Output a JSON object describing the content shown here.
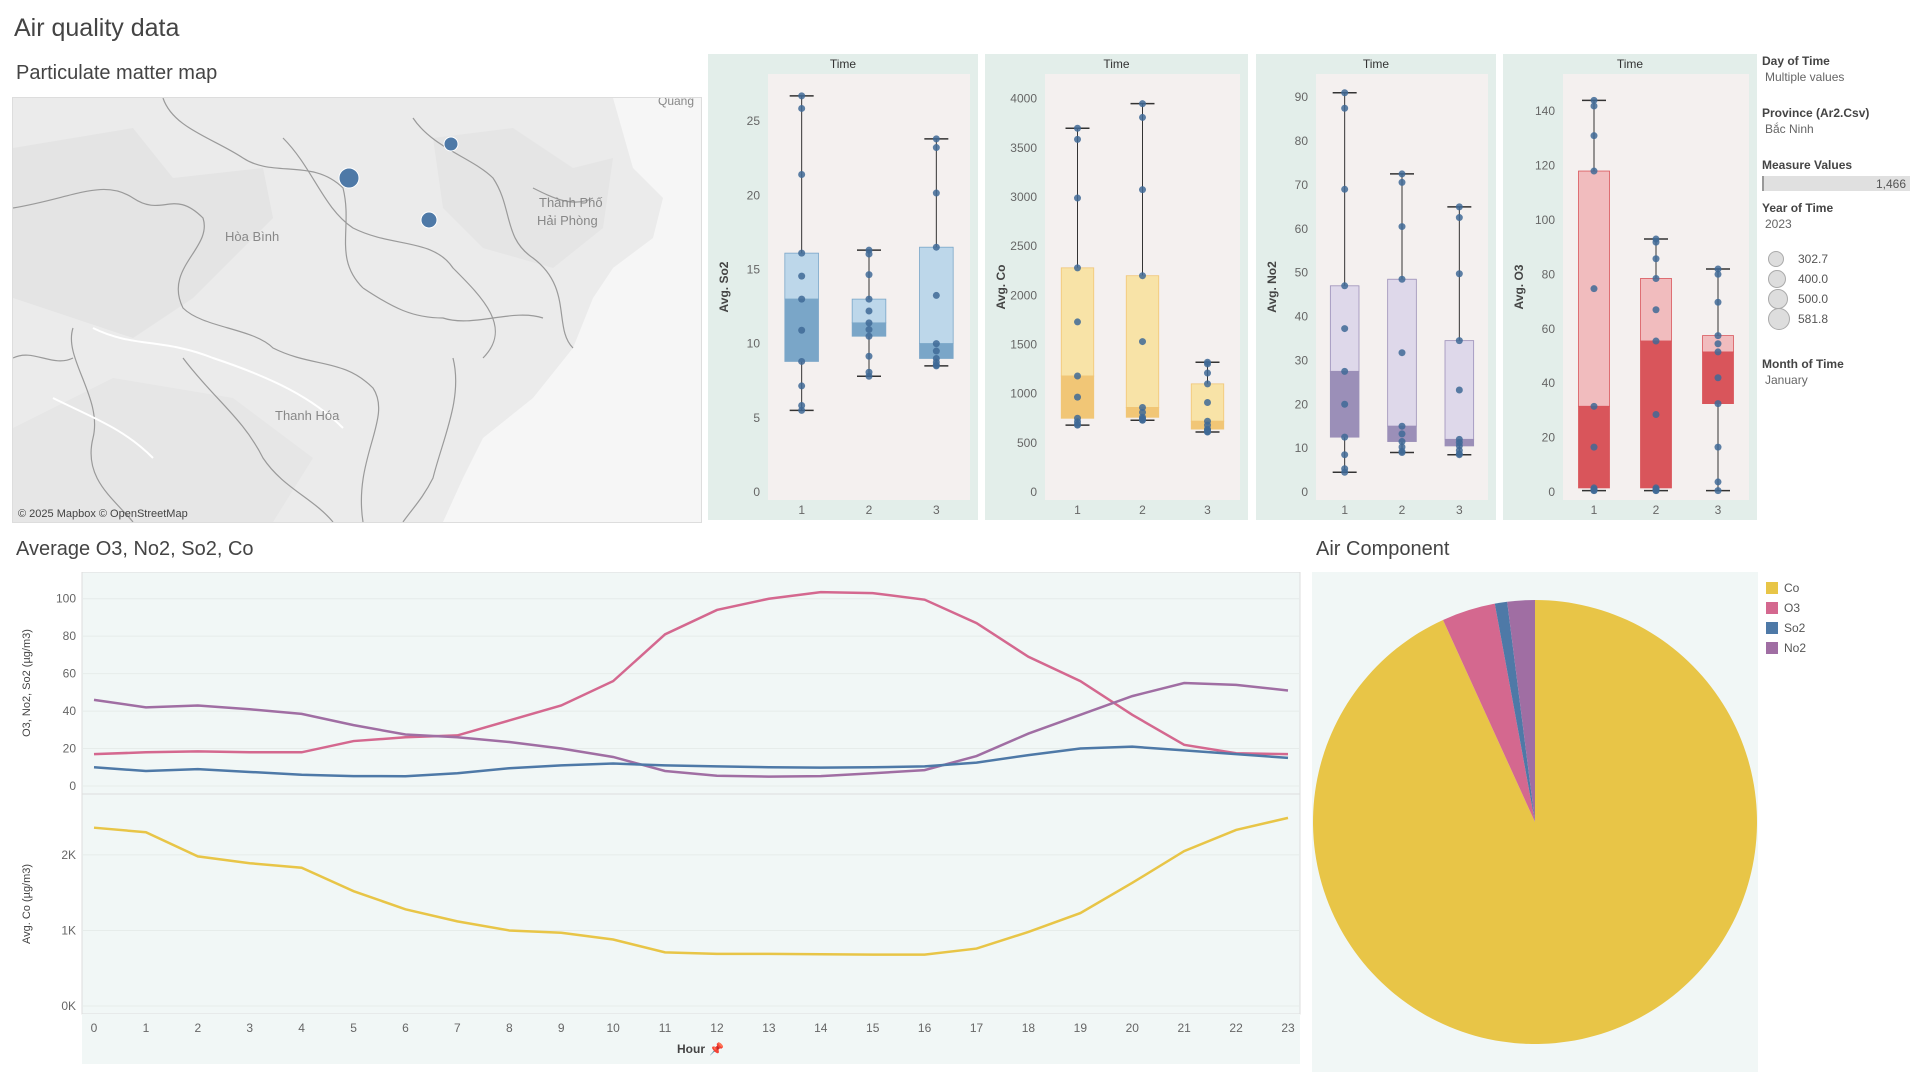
{
  "dashboard": {
    "title": "Air quality data"
  },
  "map": {
    "title": "Particulate matter map",
    "labels": {
      "quang": "Quang",
      "hoa_binh": "Hòa Bình",
      "thanh_pho": "Thành Phố",
      "hai_phong": "Hải Phòng",
      "thanh_hoa": "Thanh Hóa"
    },
    "attribution": "© 2025 Mapbox © OpenStreetMap",
    "point_color": "#4e79a7"
  },
  "boxplots": [
    {
      "facet": "Time",
      "ylabel": "Avg. So2",
      "ticks": [
        0,
        5,
        10,
        15,
        20,
        25
      ],
      "ymax": 27.5,
      "x_labels": [
        "1",
        "2",
        "3"
      ],
      "colors": {
        "light": "#bdd7ea",
        "dark": "#7aa6c8",
        "point": "#3f6a96"
      },
      "boxes": [
        {
          "min": 5.5,
          "q1": 8.8,
          "med": 13.0,
          "q3": 16.1,
          "max": 26.7
        },
        {
          "min": 7.8,
          "q1": 10.5,
          "med": 11.4,
          "q3": 13.0,
          "max": 16.3
        },
        {
          "min": 8.5,
          "q1": 9.0,
          "med": 10.0,
          "q3": 16.5,
          "max": 23.8
        }
      ]
    },
    {
      "facet": "Time",
      "ylabel": "Avg. Co",
      "ticks": [
        0,
        500,
        1000,
        1500,
        2000,
        2500,
        3000,
        3500,
        4000
      ],
      "ymax": 4150,
      "x_labels": [
        "1",
        "2",
        "3"
      ],
      "colors": {
        "light": "#f8e3a7",
        "dark": "#f1c676",
        "point": "#3f6a96"
      },
      "boxes": [
        {
          "min": 680,
          "q1": 750,
          "med": 1180,
          "q3": 2280,
          "max": 3700
        },
        {
          "min": 730,
          "q1": 760,
          "med": 860,
          "q3": 2200,
          "max": 3950
        },
        {
          "min": 610,
          "q1": 640,
          "med": 720,
          "q3": 1100,
          "max": 1320
        }
      ]
    },
    {
      "facet": "Time",
      "ylabel": "Avg. No2",
      "ticks": [
        0,
        10,
        20,
        30,
        40,
        50,
        60,
        70,
        80,
        90
      ],
      "ymax": 93,
      "x_labels": [
        "1",
        "2",
        "3"
      ],
      "colors": {
        "light": "#ded8ea",
        "dark": "#9b8fb8",
        "point": "#3f6a96"
      },
      "boxes": [
        {
          "min": 4.5,
          "q1": 12.5,
          "med": 27.5,
          "q3": 47.0,
          "max": 91.0
        },
        {
          "min": 9.0,
          "q1": 11.5,
          "med": 15.0,
          "q3": 48.5,
          "max": 72.5
        },
        {
          "min": 8.5,
          "q1": 10.5,
          "med": 12.0,
          "q3": 34.5,
          "max": 65.0
        }
      ]
    },
    {
      "facet": "Time",
      "ylabel": "Avg. O3",
      "ticks": [
        0,
        20,
        40,
        60,
        80,
        100,
        120,
        140
      ],
      "ymax": 150,
      "x_labels": [
        "1",
        "2",
        "3"
      ],
      "colors": {
        "light": "#f1bcbe",
        "dark": "#d9555b",
        "point": "#3f6a96"
      },
      "boxes": [
        {
          "min": 0.5,
          "q1": 1.5,
          "med": 31.5,
          "q3": 118,
          "max": 144
        },
        {
          "min": 0.5,
          "q1": 1.5,
          "med": 55.5,
          "q3": 78.5,
          "max": 93
        },
        {
          "min": 0.5,
          "q1": 32.5,
          "med": 51.5,
          "q3": 57.5,
          "max": 82
        }
      ]
    }
  ],
  "legend": {
    "day_of_time": {
      "title": "Day of Time",
      "value": "Multiple values"
    },
    "province": {
      "title": "Province (Ar2.Csv)",
      "value": "Bắc Ninh"
    },
    "measure_values": {
      "title": "Measure Values",
      "value": "1,466"
    },
    "year_of_time": {
      "title": "Year of Time",
      "value": "2023"
    },
    "size_items": [
      "302.7",
      "400.0",
      "500.0",
      "581.8"
    ],
    "month_of_time": {
      "title": "Month of Time",
      "value": "January"
    }
  },
  "line_section": {
    "title": "Average O3, No2, So2, Co",
    "top_ylabel": "O3, No2, So2 (µg/m3)",
    "bottom_ylabel": "Avg. Co (µg/m3)",
    "top_ticks": [
      0,
      20,
      40,
      60,
      80,
      100
    ],
    "bottom_ticks": [
      "0K",
      "1K",
      "2K"
    ],
    "xlabel": "Hour"
  },
  "chart_data": [
    {
      "type": "line",
      "title": "Average O3, No2, So2, Co",
      "x": [
        0,
        1,
        2,
        3,
        4,
        5,
        6,
        7,
        8,
        9,
        10,
        11,
        12,
        13,
        14,
        15,
        16,
        17,
        18,
        19,
        20,
        21,
        22,
        23
      ],
      "xlabel": "Hour",
      "ylabel": "O3, No2, So2 (µg/m3)",
      "ylim": [
        0,
        110
      ],
      "series": [
        {
          "name": "O3",
          "color": "#d4688f",
          "values": [
            17,
            18,
            18.5,
            18,
            18,
            24,
            26,
            27,
            35,
            43,
            56,
            81,
            94,
            100,
            103.5,
            103,
            99.5,
            87,
            69,
            56,
            38,
            22,
            17.5,
            17
          ]
        },
        {
          "name": "No2",
          "color": "#a06ea3",
          "values": [
            46,
            42,
            43,
            41,
            38.5,
            32.5,
            27.5,
            26,
            23.5,
            20,
            15.5,
            8,
            5.5,
            5,
            5.3,
            6.8,
            8.5,
            16,
            28,
            38,
            48,
            55,
            54,
            51
          ]
        },
        {
          "name": "So2",
          "color": "#4e79a7",
          "values": [
            10,
            8,
            9,
            7.5,
            6,
            5.3,
            5.2,
            6.8,
            9.5,
            11,
            12,
            11,
            10.5,
            10,
            9.8,
            10,
            10.5,
            12.5,
            16.5,
            20,
            21,
            19,
            17,
            15
          ]
        }
      ]
    },
    {
      "type": "line",
      "x": [
        0,
        1,
        2,
        3,
        4,
        5,
        6,
        7,
        8,
        9,
        10,
        11,
        12,
        13,
        14,
        15,
        16,
        17,
        18,
        19,
        20,
        21,
        22,
        23
      ],
      "xlabel": "Hour",
      "ylabel": "Avg. Co (µg/m3)",
      "ylim": [
        0,
        2700
      ],
      "series": [
        {
          "name": "Co",
          "color": "#e8c547",
          "values": [
            2360,
            2300,
            1980,
            1890,
            1830,
            1520,
            1280,
            1120,
            1000,
            970,
            880,
            710,
            690,
            690,
            685,
            680,
            680,
            760,
            980,
            1230,
            1630,
            2050,
            2330,
            2490
          ]
        }
      ]
    },
    {
      "type": "pie",
      "title": "Air Component",
      "categories": [
        "Co",
        "O3",
        "So2",
        "No2"
      ],
      "colors": [
        "#e8c547",
        "#d4688f",
        "#4e79a7",
        "#a06ea3"
      ],
      "values": [
        93.2,
        3.9,
        0.9,
        2.0
      ]
    }
  ],
  "pie": {
    "title": "Air Component"
  }
}
